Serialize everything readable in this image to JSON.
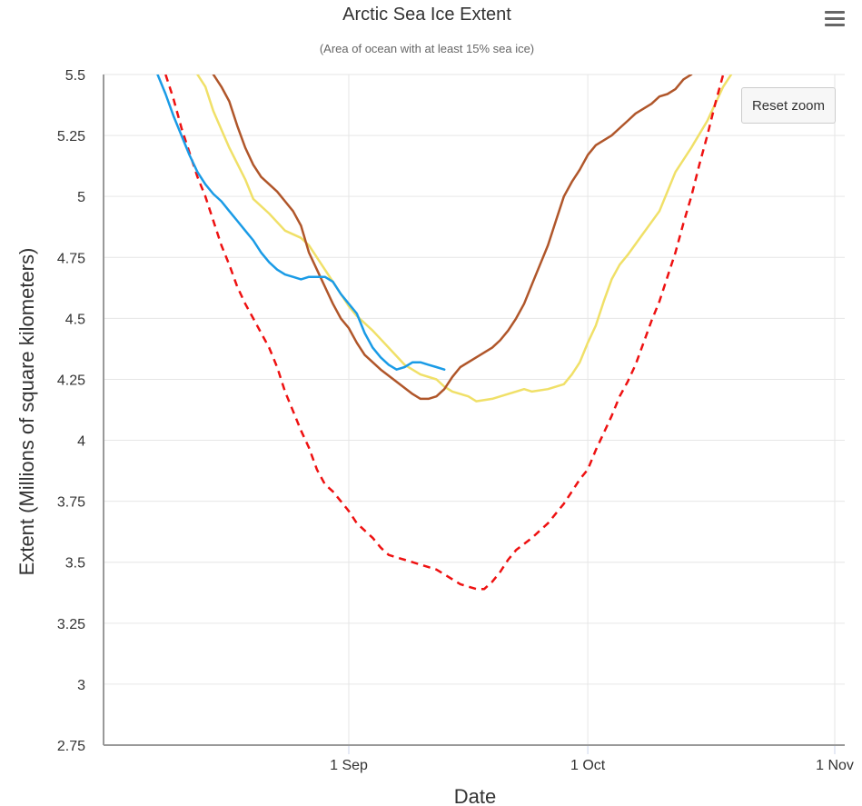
{
  "chart_data": {
    "type": "line",
    "title": "Arctic Sea Ice Extent",
    "subtitle": "(Area of ocean with at least 15% sea ice)",
    "xlabel": "Date",
    "ylabel": "Extent (Millions of square kilometers)",
    "ylim": [
      2.75,
      5.5
    ],
    "xlim": [
      "08-01",
      "11-02"
    ],
    "x_ticks": [
      {
        "date": "09-01",
        "label": "1 Sep"
      },
      {
        "date": "10-01",
        "label": "1 Oct"
      },
      {
        "date": "11-01",
        "label": "1 Nov"
      }
    ],
    "y_ticks": [
      {
        "value": 2.75,
        "label": "2.75"
      },
      {
        "value": 3,
        "label": "3"
      },
      {
        "value": 3.25,
        "label": "3.25"
      },
      {
        "value": 3.5,
        "label": "3.5"
      },
      {
        "value": 3.75,
        "label": "3.75"
      },
      {
        "value": 4,
        "label": "4"
      },
      {
        "value": 4.25,
        "label": "4.25"
      },
      {
        "value": 4.5,
        "label": "4.5"
      },
      {
        "value": 4.75,
        "label": "4.75"
      },
      {
        "value": 5,
        "label": "5"
      },
      {
        "value": 5.25,
        "label": "5.25"
      },
      {
        "value": 5.5,
        "label": "5.5"
      }
    ],
    "grid": true,
    "legend": "none",
    "series": [
      {
        "color": "#f0e068",
        "style": "solid",
        "points": [
          [
            "08-13",
            5.5
          ],
          [
            "08-14",
            5.45
          ],
          [
            "08-15",
            5.35
          ],
          [
            "08-17",
            5.2
          ],
          [
            "08-19",
            5.07
          ],
          [
            "08-20",
            4.99
          ],
          [
            "08-22",
            4.93
          ],
          [
            "08-24",
            4.86
          ],
          [
            "08-26",
            4.83
          ],
          [
            "08-27",
            4.8
          ],
          [
            "08-28",
            4.75
          ],
          [
            "08-29",
            4.7
          ],
          [
            "08-30",
            4.65
          ],
          [
            "08-31",
            4.6
          ],
          [
            "09-01",
            4.55
          ],
          [
            "09-02",
            4.51
          ],
          [
            "09-04",
            4.45
          ],
          [
            "09-06",
            4.38
          ],
          [
            "09-08",
            4.31
          ],
          [
            "09-10",
            4.27
          ],
          [
            "09-12",
            4.25
          ],
          [
            "09-13",
            4.22
          ],
          [
            "09-14",
            4.2
          ],
          [
            "09-16",
            4.18
          ],
          [
            "09-17",
            4.16
          ],
          [
            "09-19",
            4.17
          ],
          [
            "09-21",
            4.19
          ],
          [
            "09-22",
            4.2
          ],
          [
            "09-23",
            4.21
          ],
          [
            "09-24",
            4.2
          ],
          [
            "09-26",
            4.21
          ],
          [
            "09-28",
            4.23
          ],
          [
            "09-29",
            4.27
          ],
          [
            "09-30",
            4.32
          ],
          [
            "10-01",
            4.4
          ],
          [
            "10-02",
            4.47
          ],
          [
            "10-03",
            4.57
          ],
          [
            "10-04",
            4.66
          ],
          [
            "10-05",
            4.72
          ],
          [
            "10-06",
            4.76
          ],
          [
            "10-08",
            4.85
          ],
          [
            "10-10",
            4.94
          ],
          [
            "10-11",
            5.02
          ],
          [
            "10-12",
            5.1
          ],
          [
            "10-14",
            5.2
          ],
          [
            "10-16",
            5.31
          ],
          [
            "10-18",
            5.45
          ],
          [
            "10-19",
            5.5
          ]
        ]
      },
      {
        "color": "#b0562a",
        "style": "solid",
        "points": [
          [
            "08-15",
            5.5
          ],
          [
            "08-16",
            5.45
          ],
          [
            "08-17",
            5.39
          ],
          [
            "08-18",
            5.29
          ],
          [
            "08-19",
            5.2
          ],
          [
            "08-20",
            5.13
          ],
          [
            "08-21",
            5.08
          ],
          [
            "08-23",
            5.02
          ],
          [
            "08-24",
            4.98
          ],
          [
            "08-25",
            4.94
          ],
          [
            "08-26",
            4.88
          ],
          [
            "08-27",
            4.77
          ],
          [
            "08-28",
            4.7
          ],
          [
            "08-29",
            4.63
          ],
          [
            "08-30",
            4.56
          ],
          [
            "08-31",
            4.5
          ],
          [
            "09-01",
            4.46
          ],
          [
            "09-02",
            4.4
          ],
          [
            "09-03",
            4.35
          ],
          [
            "09-05",
            4.29
          ],
          [
            "09-07",
            4.24
          ],
          [
            "09-09",
            4.19
          ],
          [
            "09-10",
            4.17
          ],
          [
            "09-11",
            4.17
          ],
          [
            "09-12",
            4.18
          ],
          [
            "09-13",
            4.21
          ],
          [
            "09-14",
            4.26
          ],
          [
            "09-15",
            4.3
          ],
          [
            "09-17",
            4.34
          ],
          [
            "09-19",
            4.38
          ],
          [
            "09-20",
            4.41
          ],
          [
            "09-21",
            4.45
          ],
          [
            "09-22",
            4.5
          ],
          [
            "09-23",
            4.56
          ],
          [
            "09-24",
            4.64
          ],
          [
            "09-25",
            4.72
          ],
          [
            "09-26",
            4.8
          ],
          [
            "09-27",
            4.9
          ],
          [
            "09-28",
            5.0
          ],
          [
            "09-29",
            5.06
          ],
          [
            "09-30",
            5.11
          ],
          [
            "10-01",
            5.17
          ],
          [
            "10-02",
            5.21
          ],
          [
            "10-04",
            5.25
          ],
          [
            "10-05",
            5.28
          ],
          [
            "10-06",
            5.31
          ],
          [
            "10-07",
            5.34
          ],
          [
            "10-08",
            5.36
          ],
          [
            "10-09",
            5.38
          ],
          [
            "10-10",
            5.41
          ],
          [
            "10-11",
            5.42
          ],
          [
            "10-12",
            5.44
          ],
          [
            "10-13",
            5.48
          ],
          [
            "10-14",
            5.5
          ]
        ]
      },
      {
        "color": "#ee1111",
        "style": "dashed",
        "points": [
          [
            "08-09",
            5.5
          ],
          [
            "08-10",
            5.4
          ],
          [
            "08-11",
            5.28
          ],
          [
            "08-12",
            5.18
          ],
          [
            "08-13",
            5.08
          ],
          [
            "08-14",
            5.0
          ],
          [
            "08-15",
            4.9
          ],
          [
            "08-16",
            4.8
          ],
          [
            "08-17",
            4.72
          ],
          [
            "08-18",
            4.63
          ],
          [
            "08-19",
            4.56
          ],
          [
            "08-20",
            4.5
          ],
          [
            "08-21",
            4.44
          ],
          [
            "08-22",
            4.38
          ],
          [
            "08-23",
            4.3
          ],
          [
            "08-24",
            4.2
          ],
          [
            "08-25",
            4.12
          ],
          [
            "08-26",
            4.04
          ],
          [
            "08-27",
            3.97
          ],
          [
            "08-28",
            3.88
          ],
          [
            "08-29",
            3.82
          ],
          [
            "08-30",
            3.79
          ],
          [
            "08-31",
            3.75
          ],
          [
            "09-01",
            3.71
          ],
          [
            "09-02",
            3.66
          ],
          [
            "09-03",
            3.63
          ],
          [
            "09-04",
            3.6
          ],
          [
            "09-05",
            3.56
          ],
          [
            "09-06",
            3.53
          ],
          [
            "09-07",
            3.52
          ],
          [
            "09-08",
            3.51
          ],
          [
            "09-09",
            3.5
          ],
          [
            "09-10",
            3.49
          ],
          [
            "09-11",
            3.48
          ],
          [
            "09-12",
            3.47
          ],
          [
            "09-13",
            3.45
          ],
          [
            "09-14",
            3.43
          ],
          [
            "09-15",
            3.41
          ],
          [
            "09-16",
            3.4
          ],
          [
            "09-17",
            3.39
          ],
          [
            "09-18",
            3.39
          ],
          [
            "09-19",
            3.42
          ],
          [
            "09-20",
            3.46
          ],
          [
            "09-21",
            3.51
          ],
          [
            "09-22",
            3.55
          ],
          [
            "09-24",
            3.6
          ],
          [
            "09-25",
            3.63
          ],
          [
            "09-26",
            3.66
          ],
          [
            "09-27",
            3.7
          ],
          [
            "09-28",
            3.74
          ],
          [
            "09-29",
            3.79
          ],
          [
            "09-30",
            3.84
          ],
          [
            "10-01",
            3.88
          ],
          [
            "10-02",
            3.96
          ],
          [
            "10-03",
            4.03
          ],
          [
            "10-04",
            4.1
          ],
          [
            "10-05",
            4.18
          ],
          [
            "10-06",
            4.24
          ],
          [
            "10-07",
            4.31
          ],
          [
            "10-08",
            4.4
          ],
          [
            "10-09",
            4.49
          ],
          [
            "10-10",
            4.57
          ],
          [
            "10-11",
            4.67
          ],
          [
            "10-12",
            4.77
          ],
          [
            "10-13",
            4.89
          ],
          [
            "10-14",
            5.0
          ],
          [
            "10-15",
            5.13
          ],
          [
            "10-16",
            5.25
          ],
          [
            "10-17",
            5.38
          ],
          [
            "10-18",
            5.5
          ]
        ]
      },
      {
        "color": "#1a9be6",
        "style": "solid",
        "points": [
          [
            "08-08",
            5.5
          ],
          [
            "08-09",
            5.42
          ],
          [
            "08-10",
            5.33
          ],
          [
            "08-11",
            5.25
          ],
          [
            "08-12",
            5.17
          ],
          [
            "08-13",
            5.1
          ],
          [
            "08-14",
            5.05
          ],
          [
            "08-15",
            5.01
          ],
          [
            "08-16",
            4.98
          ],
          [
            "08-17",
            4.94
          ],
          [
            "08-18",
            4.9
          ],
          [
            "08-19",
            4.86
          ],
          [
            "08-20",
            4.82
          ],
          [
            "08-21",
            4.77
          ],
          [
            "08-22",
            4.73
          ],
          [
            "08-23",
            4.7
          ],
          [
            "08-24",
            4.68
          ],
          [
            "08-25",
            4.67
          ],
          [
            "08-26",
            4.66
          ],
          [
            "08-27",
            4.67
          ],
          [
            "08-28",
            4.67
          ],
          [
            "08-29",
            4.67
          ],
          [
            "08-30",
            4.65
          ],
          [
            "08-31",
            4.6
          ],
          [
            "09-01",
            4.56
          ],
          [
            "09-02",
            4.52
          ],
          [
            "09-03",
            4.44
          ],
          [
            "09-04",
            4.38
          ],
          [
            "09-05",
            4.34
          ],
          [
            "09-06",
            4.31
          ],
          [
            "09-07",
            4.29
          ],
          [
            "09-08",
            4.3
          ],
          [
            "09-09",
            4.32
          ],
          [
            "09-10",
            4.32
          ],
          [
            "09-11",
            4.31
          ],
          [
            "09-12",
            4.3
          ],
          [
            "09-13",
            4.29
          ]
        ]
      }
    ]
  },
  "ui": {
    "reset_zoom_label": "Reset zoom",
    "menu_icon": "hamburger-menu-icon"
  }
}
